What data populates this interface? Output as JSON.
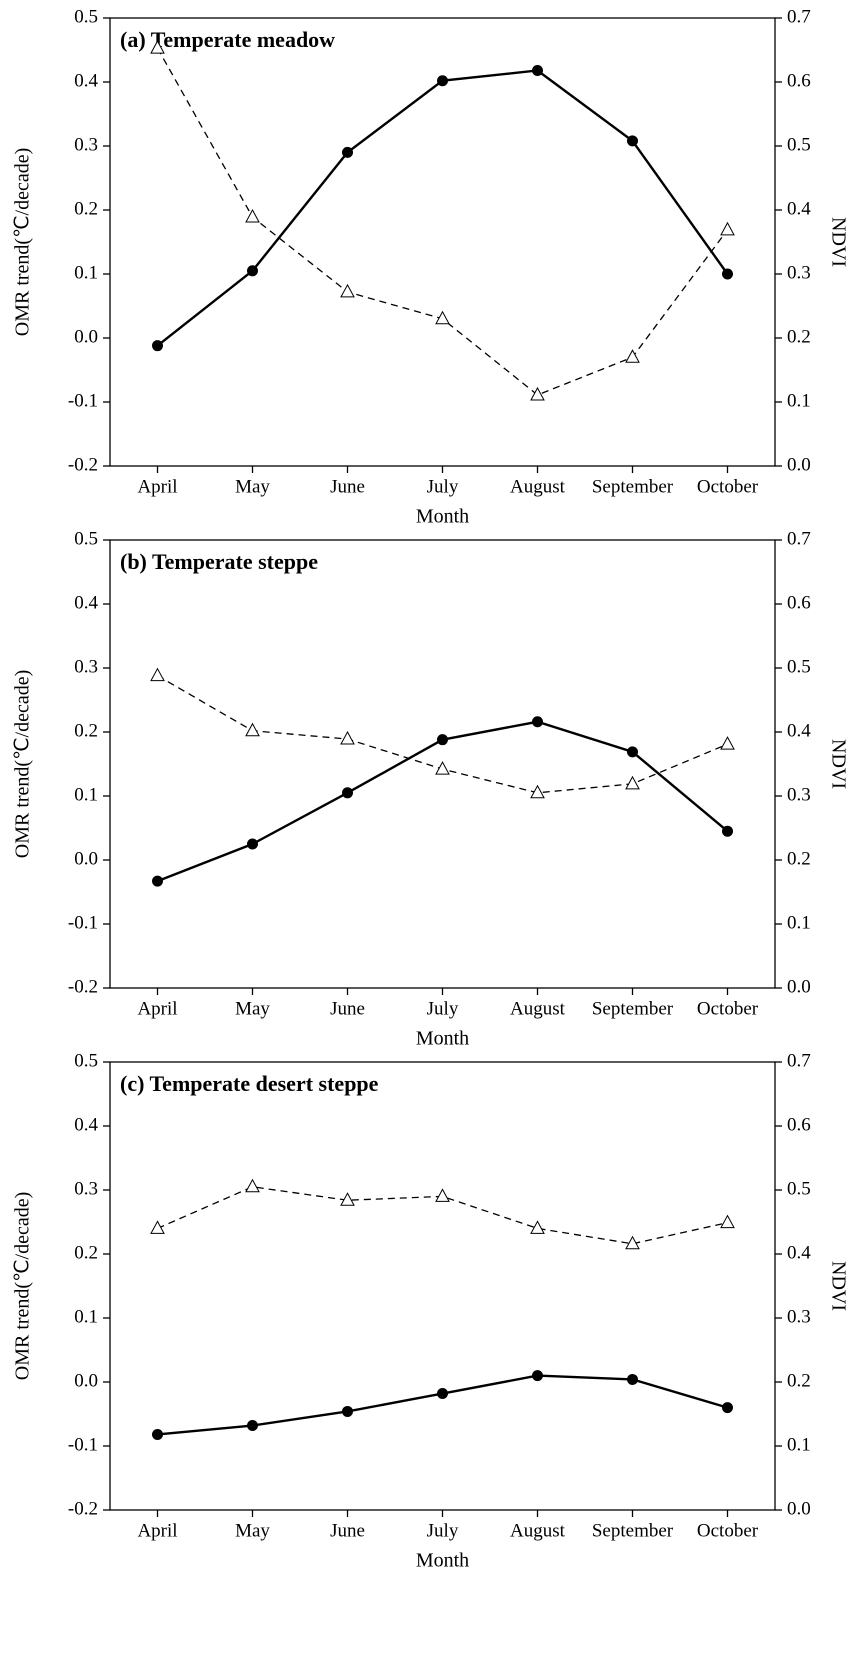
{
  "chart_data": [
    {
      "type": "line",
      "title": "(a) Temperate meadow",
      "categories": [
        "April",
        "May",
        "June",
        "July",
        "August",
        "September",
        "October"
      ],
      "xlabel": "Month",
      "ylabel": "OMR trend(℃/decade)",
      "y2label": "NDVI",
      "ylim": [
        -0.2,
        0.5
      ],
      "yticks": [
        -0.2,
        -0.1,
        {
          "value": 0,
          "label": "0.0"
        },
        0.1,
        0.2,
        0.3,
        0.4,
        0.5
      ],
      "y2lim": [
        0,
        0.7
      ],
      "y2ticks": [
        {
          "value": 0,
          "label": "0.0"
        },
        0.1,
        0.2,
        0.3,
        0.4,
        0.5,
        0.6,
        0.7
      ],
      "series": [
        {
          "color": "#000000",
          "line_style": "solid",
          "marker": "filled-circle",
          "values": [
            -0.012,
            0.105,
            0.29,
            0.402,
            0.418,
            0.308,
            0.1
          ]
        },
        {
          "color": "#000000",
          "line_style": "dashed",
          "marker": "open-triangle",
          "axis": "y2",
          "values": [
            0.653,
            0.389,
            0.272,
            0.23,
            0.111,
            0.17,
            0.369
          ]
        }
      ]
    },
    {
      "type": "line",
      "title": "(b) Temperate steppe",
      "categories": [
        "April",
        "May",
        "June",
        "July",
        "August",
        "September",
        "October"
      ],
      "xlabel": "Month",
      "ylabel": "OMR trend(℃/decade)",
      "y2label": "NDVI",
      "ylim": [
        -0.2,
        0.5
      ],
      "yticks": [
        -0.2,
        -0.1,
        {
          "value": 0,
          "label": "0.0"
        },
        0.1,
        0.2,
        0.3,
        0.4,
        0.5
      ],
      "y2lim": [
        0,
        0.7
      ],
      "y2ticks": [
        {
          "value": 0,
          "label": "0.0"
        },
        0.1,
        0.2,
        0.3,
        0.4,
        0.5,
        0.6,
        0.7
      ],
      "series": [
        {
          "color": "#000000",
          "line_style": "solid",
          "marker": "filled-circle",
          "values": [
            -0.033,
            0.025,
            0.105,
            0.188,
            0.216,
            0.169,
            0.045
          ]
        },
        {
          "color": "#000000",
          "line_style": "dashed",
          "marker": "open-triangle",
          "axis": "y2",
          "values": [
            0.488,
            0.402,
            0.389,
            0.342,
            0.305,
            0.319,
            0.381
          ]
        }
      ]
    },
    {
      "type": "line",
      "title": "(c) Temperate desert steppe",
      "categories": [
        "April",
        "May",
        "June",
        "July",
        "August",
        "September",
        "October"
      ],
      "xlabel": "Month",
      "ylabel": "OMR trend(℃/decade)",
      "y2label": "NDVI",
      "ylim": [
        -0.2,
        0.5
      ],
      "yticks": [
        -0.2,
        -0.1,
        {
          "value": 0,
          "label": "0.0"
        },
        0.1,
        0.2,
        0.3,
        0.4,
        0.5
      ],
      "y2lim": [
        0,
        0.7
      ],
      "y2ticks": [
        {
          "value": 0,
          "label": "0.0"
        },
        0.1,
        0.2,
        0.3,
        0.4,
        0.5,
        0.6,
        0.7
      ],
      "series": [
        {
          "color": "#000000",
          "line_style": "solid",
          "marker": "filled-circle",
          "values": [
            -0.082,
            -0.068,
            -0.046,
            -0.018,
            0.01,
            0.004,
            -0.04
          ]
        },
        {
          "color": "#000000",
          "line_style": "dashed",
          "marker": "open-triangle",
          "axis": "y2",
          "values": [
            0.44,
            0.505,
            0.484,
            0.49,
            0.44,
            0.416,
            0.449
          ]
        }
      ]
    }
  ]
}
